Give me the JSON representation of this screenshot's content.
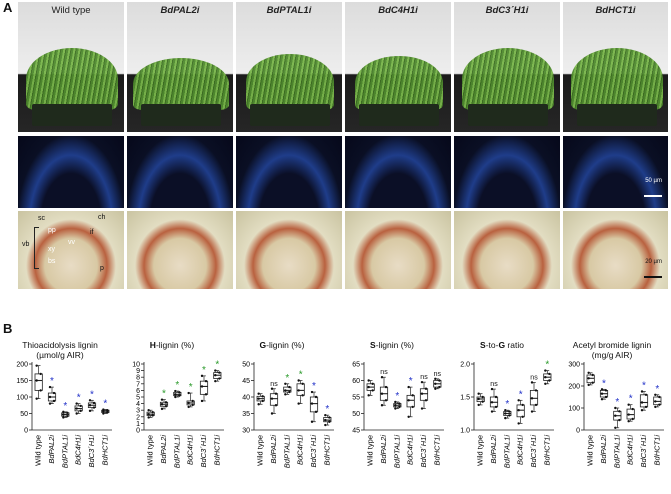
{
  "panel_a": {
    "letter": "A",
    "genotypes": [
      "Wild type",
      "BdPAL2i",
      "BdPTAL1i",
      "BdC4H1i",
      "BdC3´H1i",
      "BdHCT1i"
    ],
    "scale_fluor": "50 µm",
    "scale_stain": "20 µm",
    "annotations": [
      "sc",
      "ch",
      "pp",
      "if",
      "vb",
      "vv",
      "xy",
      "bs",
      "p"
    ]
  },
  "panel_b": {
    "letter": "B",
    "categories": [
      "Wild type",
      "BdPAL2i",
      "BdPTAL1i",
      "BdC4H1i",
      "BdC3´H1i",
      "BdHCT1i"
    ]
  },
  "colors": {
    "blue_star": "#2030c8",
    "green_star": "#2a9a2a",
    "box": "#222222"
  },
  "chart_data": [
    {
      "type": "box",
      "title_line1": "Thioacidolysis lignin",
      "title_line2": "(µmol/g AIR)",
      "ylim": [
        0,
        200
      ],
      "yticks": [
        "0",
        "50",
        "100",
        "150",
        "200"
      ],
      "categories": [
        "Wild type",
        "BdPAL2i",
        "BdPTAL1i",
        "BdC4H1i",
        "BdC3´H1i",
        "BdHCT1i"
      ],
      "medians": [
        150,
        100,
        47,
        65,
        75,
        57
      ],
      "q1": [
        120,
        88,
        42,
        58,
        68,
        53
      ],
      "q3": [
        170,
        112,
        52,
        73,
        82,
        60
      ],
      "min": [
        95,
        80,
        38,
        50,
        58,
        50
      ],
      "max": [
        195,
        130,
        55,
        80,
        90,
        62
      ],
      "marks": [
        "",
        "*",
        "*",
        "*",
        "*",
        "*"
      ],
      "mark_colors": [
        "",
        "blue",
        "blue",
        "blue",
        "blue",
        "blue"
      ]
    },
    {
      "type": "box",
      "title_bold": "H",
      "title_rest": "-lignin (%)",
      "ylim": [
        0,
        10
      ],
      "yticks": [
        "0",
        "1",
        "2",
        "3",
        "4",
        "5",
        "6",
        "7",
        "8",
        "9",
        "10"
      ],
      "categories": [
        "Wild type",
        "BdPAL2i",
        "BdPTAL1i",
        "BdC4H1i",
        "BdC3´H1i",
        "BdHCT1i"
      ],
      "medians": [
        2.4,
        3.9,
        5.4,
        4.1,
        6.6,
        8.3
      ],
      "q1": [
        2.2,
        3.6,
        5.2,
        3.8,
        5.4,
        7.8
      ],
      "q3": [
        2.7,
        4.2,
        5.7,
        4.4,
        7.4,
        8.7
      ],
      "min": [
        1.9,
        3.2,
        5.0,
        3.5,
        4.4,
        7.4
      ],
      "max": [
        3.0,
        4.6,
        5.9,
        5.6,
        8.2,
        9.0
      ],
      "marks": [
        "",
        "*",
        "*",
        "*",
        "*",
        "*"
      ],
      "mark_colors": [
        "",
        "green",
        "green",
        "green",
        "green",
        "green"
      ]
    },
    {
      "type": "box",
      "title_bold": "G",
      "title_rest": "-lignin (%)",
      "ylim": [
        30,
        50
      ],
      "yticks": [
        "30",
        "35",
        "40",
        "45",
        "50"
      ],
      "categories": [
        "Wild type",
        "BdPAL2i",
        "BdPTAL1i",
        "BdC4H1i",
        "BdC3´H1i",
        "BdHCT1i"
      ],
      "medians": [
        39.5,
        39.5,
        42,
        42,
        38,
        33
      ],
      "q1": [
        38.8,
        37.5,
        41.5,
        40.5,
        35.5,
        32.5
      ],
      "q3": [
        40.2,
        41,
        43,
        44,
        40,
        33.8
      ],
      "min": [
        37.8,
        35,
        40.8,
        38,
        32.5,
        31.5
      ],
      "max": [
        41,
        42.5,
        44,
        45,
        41.5,
        34.5
      ],
      "marks": [
        "",
        "ns",
        "*",
        "*",
        "*",
        "*"
      ],
      "mark_colors": [
        "",
        "black",
        "green",
        "green",
        "blue",
        "blue"
      ]
    },
    {
      "type": "box",
      "title_bold": "S",
      "title_rest": "-lignin (%)",
      "ylim": [
        45,
        65
      ],
      "yticks": [
        "45",
        "50",
        "55",
        "60",
        "65"
      ],
      "categories": [
        "Wild type",
        "BdPAL2i",
        "BdPTAL1i",
        "BdC4H1i",
        "BdC3´H1i",
        "BdHCT1i"
      ],
      "medians": [
        58,
        56,
        52.5,
        54,
        56,
        59
      ],
      "q1": [
        57,
        54,
        52,
        52,
        54,
        58
      ],
      "q3": [
        59,
        58,
        53,
        55.5,
        57.5,
        60
      ],
      "min": [
        55.5,
        52.5,
        51.5,
        49,
        51.5,
        57.5
      ],
      "max": [
        60,
        61,
        53.5,
        58,
        59.5,
        60.5
      ],
      "marks": [
        "",
        "ns",
        "*",
        "*",
        "ns",
        "ns"
      ],
      "mark_colors": [
        "",
        "black",
        "blue",
        "blue",
        "black",
        "black"
      ]
    },
    {
      "type": "box",
      "title_bold": "S",
      "title_rest": "-to-",
      "title_bold2": "G",
      "title_rest2": " ratio",
      "ylim": [
        1.0,
        2.0
      ],
      "yticks": [
        "1.0",
        "1.5",
        "2.0"
      ],
      "categories": [
        "Wild type",
        "BdPAL2i",
        "BdPTAL1i",
        "BdC4H1i",
        "BdC3´H1i",
        "BdHCT1i"
      ],
      "medians": [
        1.47,
        1.42,
        1.25,
        1.3,
        1.48,
        1.8
      ],
      "q1": [
        1.43,
        1.35,
        1.22,
        1.2,
        1.38,
        1.75
      ],
      "q3": [
        1.5,
        1.5,
        1.28,
        1.38,
        1.6,
        1.85
      ],
      "min": [
        1.38,
        1.28,
        1.18,
        1.1,
        1.28,
        1.7
      ],
      "max": [
        1.55,
        1.62,
        1.3,
        1.45,
        1.72,
        1.9
      ],
      "marks": [
        "",
        "ns",
        "*",
        "*",
        "ns",
        "*"
      ],
      "mark_colors": [
        "",
        "black",
        "blue",
        "blue",
        "black",
        "green"
      ]
    },
    {
      "type": "box",
      "title_line1": "Acetyl bromide lignin",
      "title_line2": "(mg/g AIR)",
      "ylim": [
        0,
        300
      ],
      "yticks": [
        "0",
        "100",
        "200",
        "300"
      ],
      "categories": [
        "Wild type",
        "BdPAL2i",
        "BdPTAL1i",
        "BdC4H1i",
        "BdC3´H1i",
        "BdHCT1i"
      ],
      "medians": [
        235,
        165,
        65,
        70,
        125,
        130
      ],
      "q1": [
        215,
        150,
        45,
        50,
        105,
        115
      ],
      "q3": [
        250,
        180,
        85,
        95,
        160,
        150
      ],
      "min": [
        205,
        140,
        10,
        40,
        90,
        105
      ],
      "max": [
        260,
        185,
        100,
        115,
        175,
        160
      ],
      "marks": [
        "",
        "*",
        "*",
        "*",
        "*",
        "*"
      ],
      "mark_colors": [
        "",
        "blue",
        "blue",
        "blue",
        "blue",
        "blue"
      ]
    }
  ]
}
